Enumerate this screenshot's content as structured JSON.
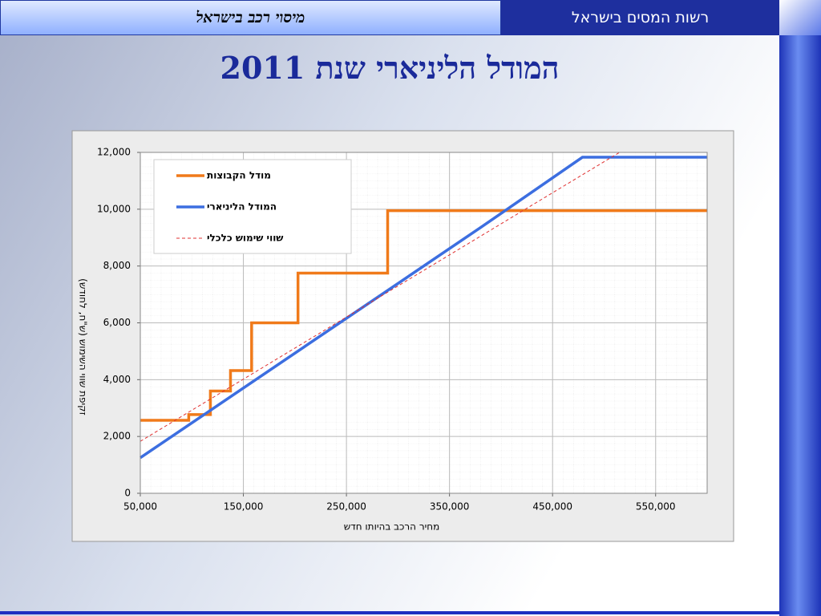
{
  "header": {
    "left_title": "מיסוי רכב בישראל",
    "right_title": "רשות המסים בישראל"
  },
  "title": "המודל הליניארי שנת 2011",
  "chart_data": {
    "type": "line",
    "xlabel": "מחיר הרכב בהיותו חדש",
    "ylabel": "זקיפת שווי השימוש (ש\"ח, לחודש)",
    "xlim": [
      50000,
      600000
    ],
    "ylim": [
      0,
      12000
    ],
    "xticks": [
      {
        "value": 50000,
        "label": "50,000"
      },
      {
        "value": 150000,
        "label": "150,000"
      },
      {
        "value": 250000,
        "label": "250,000"
      },
      {
        "value": 350000,
        "label": "350,000"
      },
      {
        "value": 450000,
        "label": "450,000"
      },
      {
        "value": 550000,
        "label": "550,000"
      }
    ],
    "yticks": [
      0,
      {
        "value": 2000,
        "label": "2,000"
      },
      {
        "value": 4000,
        "label": "4,000"
      },
      {
        "value": 6000,
        "label": "6,000"
      },
      {
        "value": 8000,
        "label": "8,000"
      },
      {
        "value": 10000,
        "label": "10,000"
      },
      {
        "value": 12000,
        "label": "12,000"
      }
    ],
    "grid": true,
    "legend": "upper left",
    "series": [
      {
        "name": "מודל הקבוצות",
        "color": "#f07a1a",
        "style": "solid",
        "x": [
          50000,
          97000,
          97000,
          118000,
          118000,
          137500,
          137500,
          158000,
          158000,
          203000,
          203000,
          290000,
          290000,
          600000
        ],
        "values": [
          2570,
          2570,
          2770,
          2770,
          3600,
          3600,
          4320,
          4320,
          6000,
          6000,
          7750,
          7750,
          9950,
          9950
        ]
      },
      {
        "name": "המודל הליניארי",
        "color": "#3c6ee0",
        "style": "solid",
        "x": [
          50000,
          380000,
          479000,
          600000
        ],
        "values": [
          1250,
          9350,
          11830,
          11830
        ]
      },
      {
        "name": "שווי שימוש כלכלי",
        "color": "#e03030",
        "style": "dashed",
        "x": [
          50000,
          515000
        ],
        "values": [
          1830,
          12000
        ]
      }
    ]
  }
}
